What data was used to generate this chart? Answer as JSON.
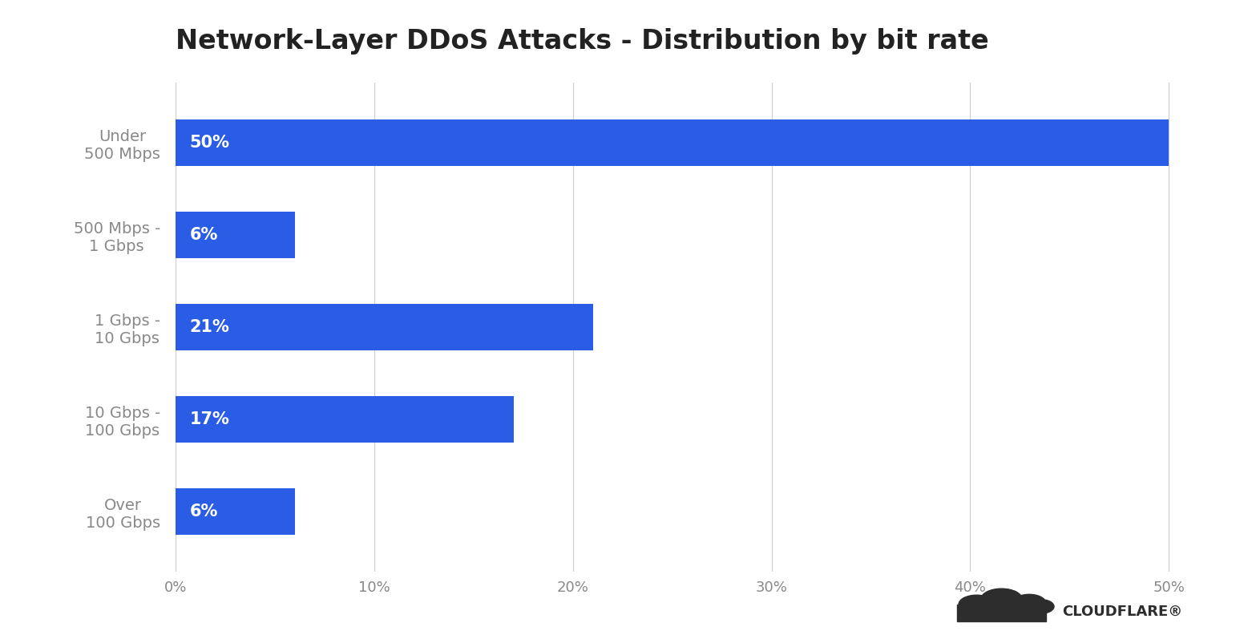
{
  "title": "Network-Layer DDoS Attacks - Distribution by bit rate",
  "categories": [
    "Under\n500 Mbps",
    "500 Mbps -\n1 Gbps",
    "1 Gbps -\n10 Gbps",
    "10 Gbps -\n100 Gbps",
    "Over\n100 Gbps"
  ],
  "values": [
    50,
    6,
    21,
    17,
    6
  ],
  "labels": [
    "50%",
    "6%",
    "21%",
    "17%",
    "6%"
  ],
  "bar_color": "#2B5CE6",
  "background_color": "#FFFFFF",
  "text_color": "#222222",
  "label_color": "#FFFFFF",
  "tick_color": "#888888",
  "grid_color": "#CCCCCC",
  "xlim": [
    0,
    52.5
  ],
  "xticks": [
    0,
    10,
    20,
    30,
    40,
    50
  ],
  "xtick_labels": [
    "0%",
    "10%",
    "20%",
    "30%",
    "40%",
    "50%"
  ],
  "title_fontsize": 24,
  "label_fontsize": 15,
  "tick_fontsize": 13,
  "category_fontsize": 14,
  "bar_height": 0.5,
  "figsize": [
    15.67,
    7.92
  ],
  "dpi": 100
}
